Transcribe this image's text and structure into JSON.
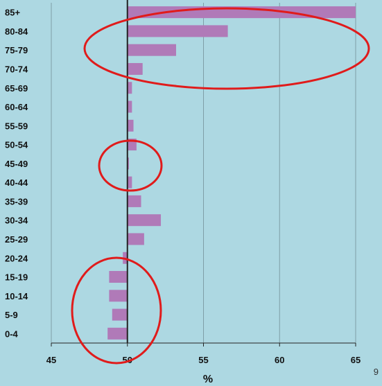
{
  "chart_data": {
    "type": "bar",
    "orientation": "horizontal",
    "categories": [
      "85+",
      "80-84",
      "75-79",
      "70-74",
      "65-69",
      "60-64",
      "55-59",
      "50-54",
      "45-49",
      "40-44",
      "35-39",
      "30-34",
      "25-29",
      "20-24",
      "15-19",
      "10-14",
      "5-9",
      "0-4"
    ],
    "values": [
      65.0,
      56.6,
      53.2,
      51.0,
      50.3,
      50.3,
      50.4,
      50.6,
      50.1,
      50.3,
      50.9,
      52.2,
      51.1,
      49.7,
      48.8,
      48.8,
      49.0,
      48.7
    ],
    "baseline": 50,
    "xlabel": "%",
    "ylabel": "",
    "title": "",
    "xlim": [
      45,
      65
    ],
    "xticks": [
      45,
      50,
      55,
      60,
      65
    ],
    "grid": "vertical",
    "bar_color": "#b07ab8",
    "baseline_color": "#222222",
    "grid_color": "#7f9ea6"
  },
  "annotations": {
    "ellipse_color": "#e01b1b"
  },
  "page_number": "9"
}
